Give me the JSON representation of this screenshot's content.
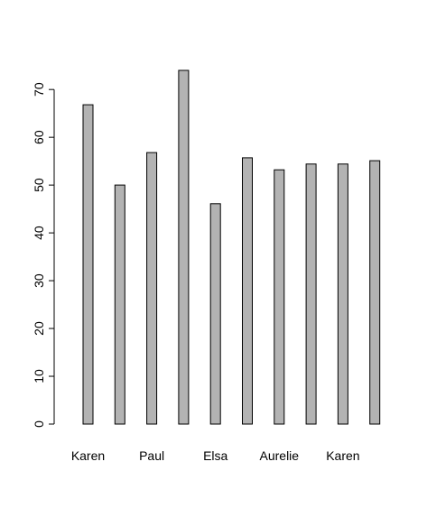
{
  "chart_data": {
    "type": "bar",
    "categories": [
      "Karen",
      "",
      "Paul",
      "",
      "Elsa",
      "",
      "Aurelie",
      "",
      "Karen",
      ""
    ],
    "values": [
      66.8,
      50.0,
      56.8,
      74.0,
      46.1,
      55.7,
      53.2,
      54.4,
      54.4,
      55.1
    ],
    "title": "",
    "xlabel": "",
    "ylabel": "",
    "ylim": [
      0,
      74
    ],
    "yticks": [
      0,
      10,
      20,
      30,
      40,
      50,
      60,
      70
    ],
    "ytick_labels": [
      "0",
      "10",
      "20",
      "30",
      "40",
      "50",
      "60",
      "70"
    ],
    "grid": false,
    "colors": {
      "bar_fill": "#b3b3b3",
      "bar_stroke": "#000000"
    }
  }
}
